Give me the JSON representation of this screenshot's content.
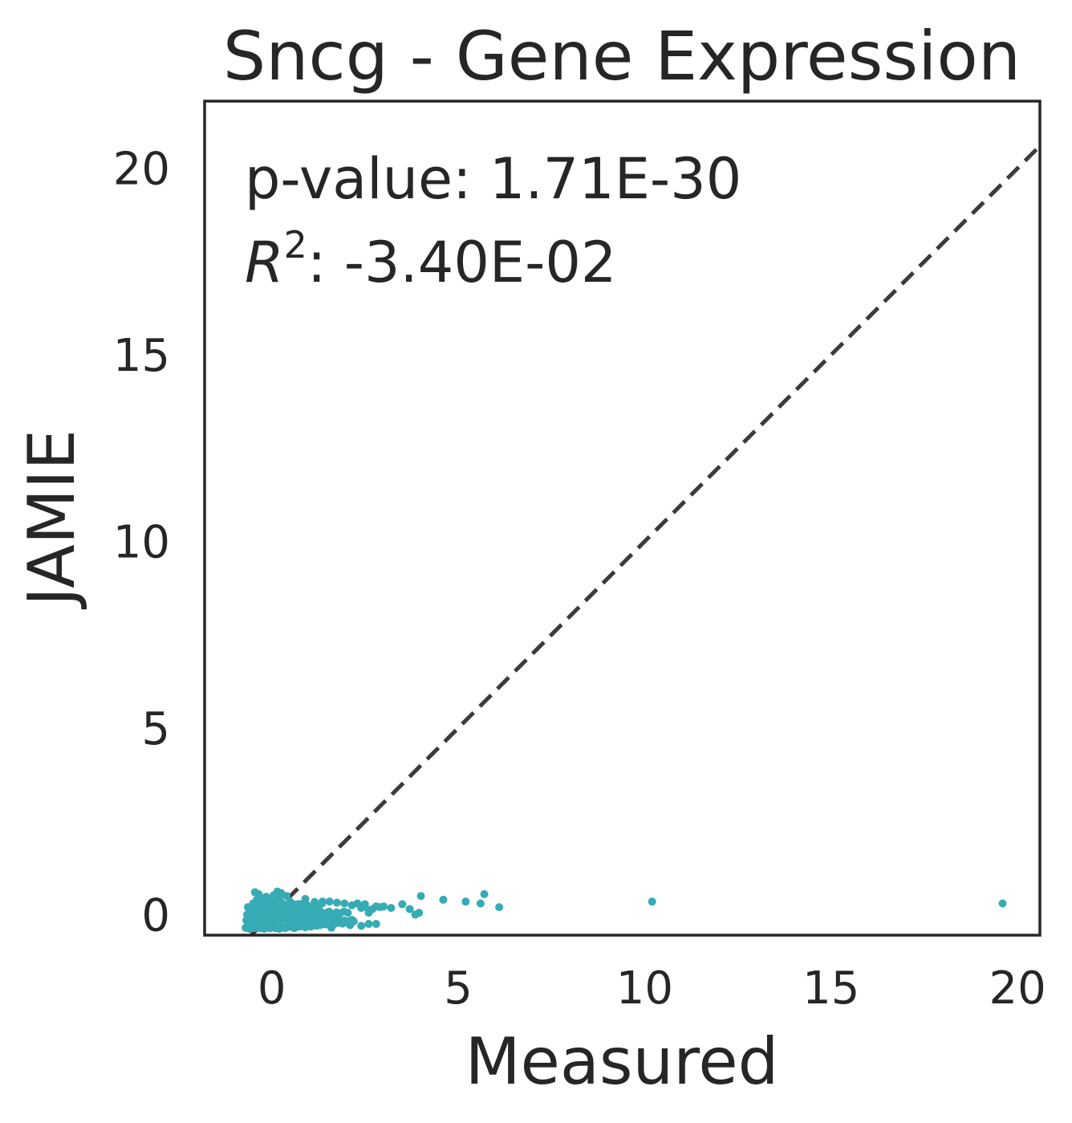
{
  "chart_data": {
    "type": "scatter",
    "title": "Sncg - Gene Expression",
    "xlabel": "Measured",
    "ylabel": "JAMIE",
    "xlim": [
      -1.8,
      20.6
    ],
    "ylim": [
      -0.55,
      21.8
    ],
    "x_ticks": [
      0,
      5,
      10,
      15,
      20
    ],
    "y_ticks": [
      0,
      5,
      10,
      15,
      20
    ],
    "grid": false,
    "annotations": {
      "p_value_label": "p-value: 1.71E-30",
      "r2_symbol": "R",
      "r2_exponent": "2",
      "r2_value": ": -3.40E-02"
    },
    "reference_line": {
      "x": [
        -1.8,
        20.6
      ],
      "y": [
        -1.8,
        20.6
      ],
      "style": "dashed",
      "color": "#3b3b3b"
    },
    "point_color": "#36abb4",
    "series": [
      {
        "x": [
          -0.7,
          -0.65,
          -0.6,
          -0.55,
          -0.5,
          -0.45,
          -0.4,
          -0.35,
          -0.3,
          -0.25,
          -0.2,
          -0.15,
          -0.1,
          -0.05,
          0.0,
          0.05,
          0.1,
          0.15,
          0.2,
          0.25,
          0.3,
          0.35,
          0.4,
          0.45,
          0.5,
          0.55,
          0.6,
          0.65,
          0.7,
          0.75,
          0.8,
          0.85,
          0.9,
          0.95,
          1.0,
          1.05,
          1.1,
          1.15,
          1.2,
          1.25,
          1.3,
          1.35,
          1.4,
          1.45,
          1.5,
          1.55,
          1.6,
          1.65,
          1.7,
          1.75,
          1.8,
          1.85,
          1.9,
          1.95,
          2.0,
          2.05,
          2.1,
          2.15,
          2.2,
          -0.68,
          -0.62,
          -0.58,
          -0.52,
          -0.48,
          -0.42,
          -0.38,
          -0.32,
          -0.28,
          -0.22,
          -0.18,
          -0.12,
          -0.08,
          -0.02,
          0.02,
          0.08,
          0.12,
          0.18,
          0.22,
          0.28,
          0.32,
          0.38,
          0.42,
          0.48,
          0.52,
          0.58,
          0.62,
          0.68,
          0.72,
          0.78,
          0.82,
          0.88,
          0.92,
          0.98,
          1.02,
          1.08,
          1.12,
          1.18,
          1.22,
          1.28,
          1.32,
          1.38,
          1.42,
          1.48,
          1.52,
          1.58,
          1.62,
          1.68,
          1.72,
          1.78,
          -0.66,
          -0.56,
          -0.46,
          -0.36,
          -0.26,
          -0.16,
          -0.06,
          0.04,
          0.14,
          0.24,
          0.34,
          0.44,
          0.54,
          0.64,
          0.74,
          0.84,
          0.94,
          1.04,
          1.14,
          1.24,
          1.34,
          1.44,
          1.54,
          1.64,
          1.74,
          1.84,
          1.94,
          2.04,
          -0.64,
          -0.54,
          -0.44,
          -0.34,
          -0.24,
          -0.14,
          -0.04,
          0.06,
          0.16,
          0.26,
          0.36,
          0.46,
          0.56,
          0.66,
          0.76,
          0.86,
          0.96,
          1.06,
          1.16,
          1.26,
          1.36,
          -0.5,
          -0.3,
          -0.1,
          0.1,
          0.3,
          0.5,
          0.7,
          0.9,
          -0.4,
          -0.2,
          0.0,
          0.2,
          0.4,
          -0.35,
          -0.15,
          0.05,
          0.25,
          -0.45,
          0.15,
          -0.25,
          0.35,
          0.55,
          0.75,
          0.95,
          1.15,
          1.35,
          1.55,
          1.75,
          1.95,
          2.15,
          2.3,
          2.4,
          2.5,
          2.6,
          2.7,
          2.8,
          2.9,
          3.0,
          3.2,
          3.5,
          3.7,
          3.85,
          3.95,
          4.0,
          4.6,
          5.2,
          5.6,
          5.7,
          6.1,
          10.2,
          19.6,
          -0.4,
          -0.1,
          0.2,
          1.0,
          1.6,
          2.1,
          2.4,
          2.6,
          2.8,
          2.6
        ],
        "y": [
          -0.35,
          -0.3,
          -0.38,
          -0.32,
          -0.36,
          -0.28,
          -0.34,
          -0.3,
          -0.36,
          -0.32,
          -0.38,
          -0.3,
          -0.34,
          -0.36,
          -0.32,
          -0.3,
          -0.36,
          -0.34,
          -0.38,
          -0.3,
          -0.32,
          -0.36,
          -0.34,
          -0.28,
          -0.32,
          -0.3,
          -0.36,
          -0.34,
          -0.3,
          -0.32,
          -0.28,
          -0.3,
          -0.34,
          -0.26,
          -0.3,
          -0.32,
          -0.28,
          -0.26,
          -0.3,
          -0.24,
          -0.28,
          -0.26,
          -0.22,
          -0.26,
          -0.24,
          -0.28,
          -0.22,
          -0.2,
          -0.24,
          -0.22,
          -0.18,
          -0.2,
          -0.24,
          -0.16,
          -0.2,
          -0.18,
          -0.22,
          -0.14,
          -0.18,
          -0.15,
          -0.12,
          -0.18,
          -0.1,
          -0.14,
          -0.08,
          -0.16,
          -0.12,
          -0.06,
          -0.1,
          -0.14,
          -0.08,
          -0.12,
          -0.04,
          -0.1,
          -0.14,
          -0.06,
          -0.12,
          -0.08,
          -0.1,
          -0.04,
          -0.12,
          -0.08,
          -0.1,
          -0.06,
          -0.14,
          -0.02,
          -0.08,
          -0.1,
          -0.06,
          -0.12,
          -0.04,
          -0.08,
          -0.02,
          -0.1,
          -0.06,
          -0.08,
          -0.12,
          -0.04,
          -0.1,
          -0.06,
          -0.02,
          -0.08,
          -0.04,
          -0.06,
          -0.1,
          -0.02,
          -0.08,
          -0.04,
          -0.06,
          -0.0,
          0.05,
          0.0,
          0.08,
          0.02,
          0.06,
          0.1,
          0.04,
          0.08,
          0.02,
          0.06,
          0.1,
          0.04,
          0.08,
          0.0,
          0.06,
          0.04,
          0.08,
          0.02,
          0.1,
          0.06,
          0.04,
          0.08,
          0.02,
          0.06,
          0.04,
          0.08,
          0.05,
          0.2,
          0.15,
          0.22,
          0.18,
          0.24,
          0.2,
          0.16,
          0.22,
          0.18,
          0.2,
          0.24,
          0.16,
          0.2,
          0.22,
          0.18,
          0.24,
          0.2,
          0.18,
          0.22,
          0.2,
          0.35,
          0.3,
          0.38,
          0.32,
          0.36,
          0.3,
          0.34,
          0.28,
          0.42,
          0.4,
          0.45,
          0.38,
          0.44,
          0.5,
          0.55,
          0.48,
          0.52,
          0.58,
          0.6,
          0.62,
          0.3,
          0.25,
          0.3,
          0.28,
          0.26,
          0.34,
          0.3,
          0.35,
          0.32,
          0.3,
          0.25,
          0.3,
          0.18,
          0.28,
          0.12,
          0.15,
          0.22,
          0.2,
          0.22,
          0.18,
          0.28,
          0.15,
          0.0,
          0.05,
          0.5,
          0.4,
          0.35,
          0.3,
          0.55,
          0.2,
          0.35,
          0.3,
          -0.35,
          -0.3,
          -0.35,
          -0.3,
          -0.35,
          -0.28,
          -0.3,
          -0.25,
          -0.25,
          0.05
        ],
        "color": "#36abb4"
      }
    ]
  }
}
